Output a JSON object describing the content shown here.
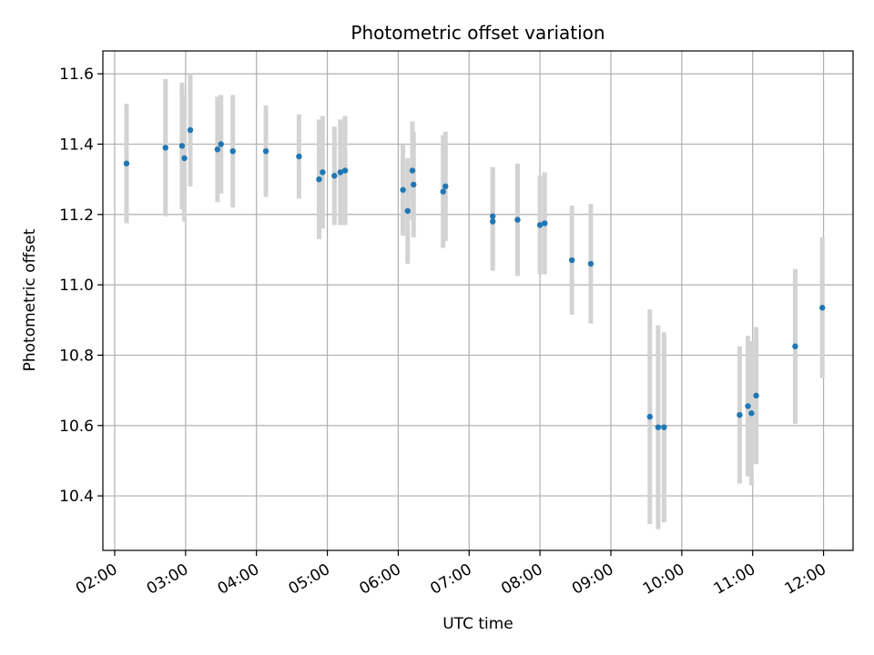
{
  "chart_data": {
    "type": "scatter",
    "title": "Photometric offset variation",
    "xlabel": "UTC time",
    "ylabel": "Photometric offset",
    "x_ticks": [
      "02:00",
      "03:00",
      "04:00",
      "05:00",
      "06:00",
      "07:00",
      "08:00",
      "09:00",
      "10:00",
      "11:00",
      "12:00"
    ],
    "y_ticks": [
      "10.4",
      "10.6",
      "10.8",
      "11.0",
      "11.2",
      "11.4",
      "11.6"
    ],
    "xlim": [
      "01:50",
      "12:25"
    ],
    "ylim": [
      10.245,
      11.665
    ],
    "grid": true,
    "colors": {
      "point": "#1f77b4",
      "errorbar": "#d3d3d3",
      "grid": "#b0b0b0"
    },
    "series": [
      {
        "x": [
          "02:10",
          "02:43",
          "02:57",
          "02:59",
          "03:04",
          "03:27",
          "03:30",
          "03:40",
          "04:08",
          "04:36",
          "04:53",
          "04:56",
          "05:06",
          "05:11",
          "05:15",
          "06:04",
          "06:08",
          "06:12",
          "06:13",
          "06:38",
          "06:40",
          "07:20",
          "07:20",
          "07:41",
          "08:00",
          "08:04",
          "08:27",
          "08:43",
          "09:33",
          "09:40",
          "09:45",
          "10:49",
          "10:56",
          "10:59",
          "11:03",
          "11:36",
          "11:59"
        ],
        "y": [
          11.345,
          11.39,
          11.395,
          11.36,
          11.44,
          11.385,
          11.4,
          11.38,
          11.38,
          11.365,
          11.3,
          11.32,
          11.31,
          11.32,
          11.325,
          11.27,
          11.21,
          11.325,
          11.285,
          11.265,
          11.28,
          11.18,
          11.195,
          11.185,
          11.17,
          11.175,
          11.07,
          11.06,
          10.625,
          10.595,
          10.595,
          10.63,
          10.655,
          10.635,
          10.685,
          10.825,
          10.935
        ],
        "err": [
          0.17,
          0.195,
          0.18,
          0.18,
          0.16,
          0.15,
          0.14,
          0.16,
          0.13,
          0.12,
          0.17,
          0.16,
          0.14,
          0.15,
          0.155,
          0.13,
          0.15,
          0.14,
          0.15,
          0.16,
          0.155,
          0.14,
          0.14,
          0.16,
          0.14,
          0.145,
          0.155,
          0.17,
          0.305,
          0.29,
          0.27,
          0.195,
          0.2,
          0.205,
          0.195,
          0.22,
          0.2
        ]
      }
    ]
  }
}
